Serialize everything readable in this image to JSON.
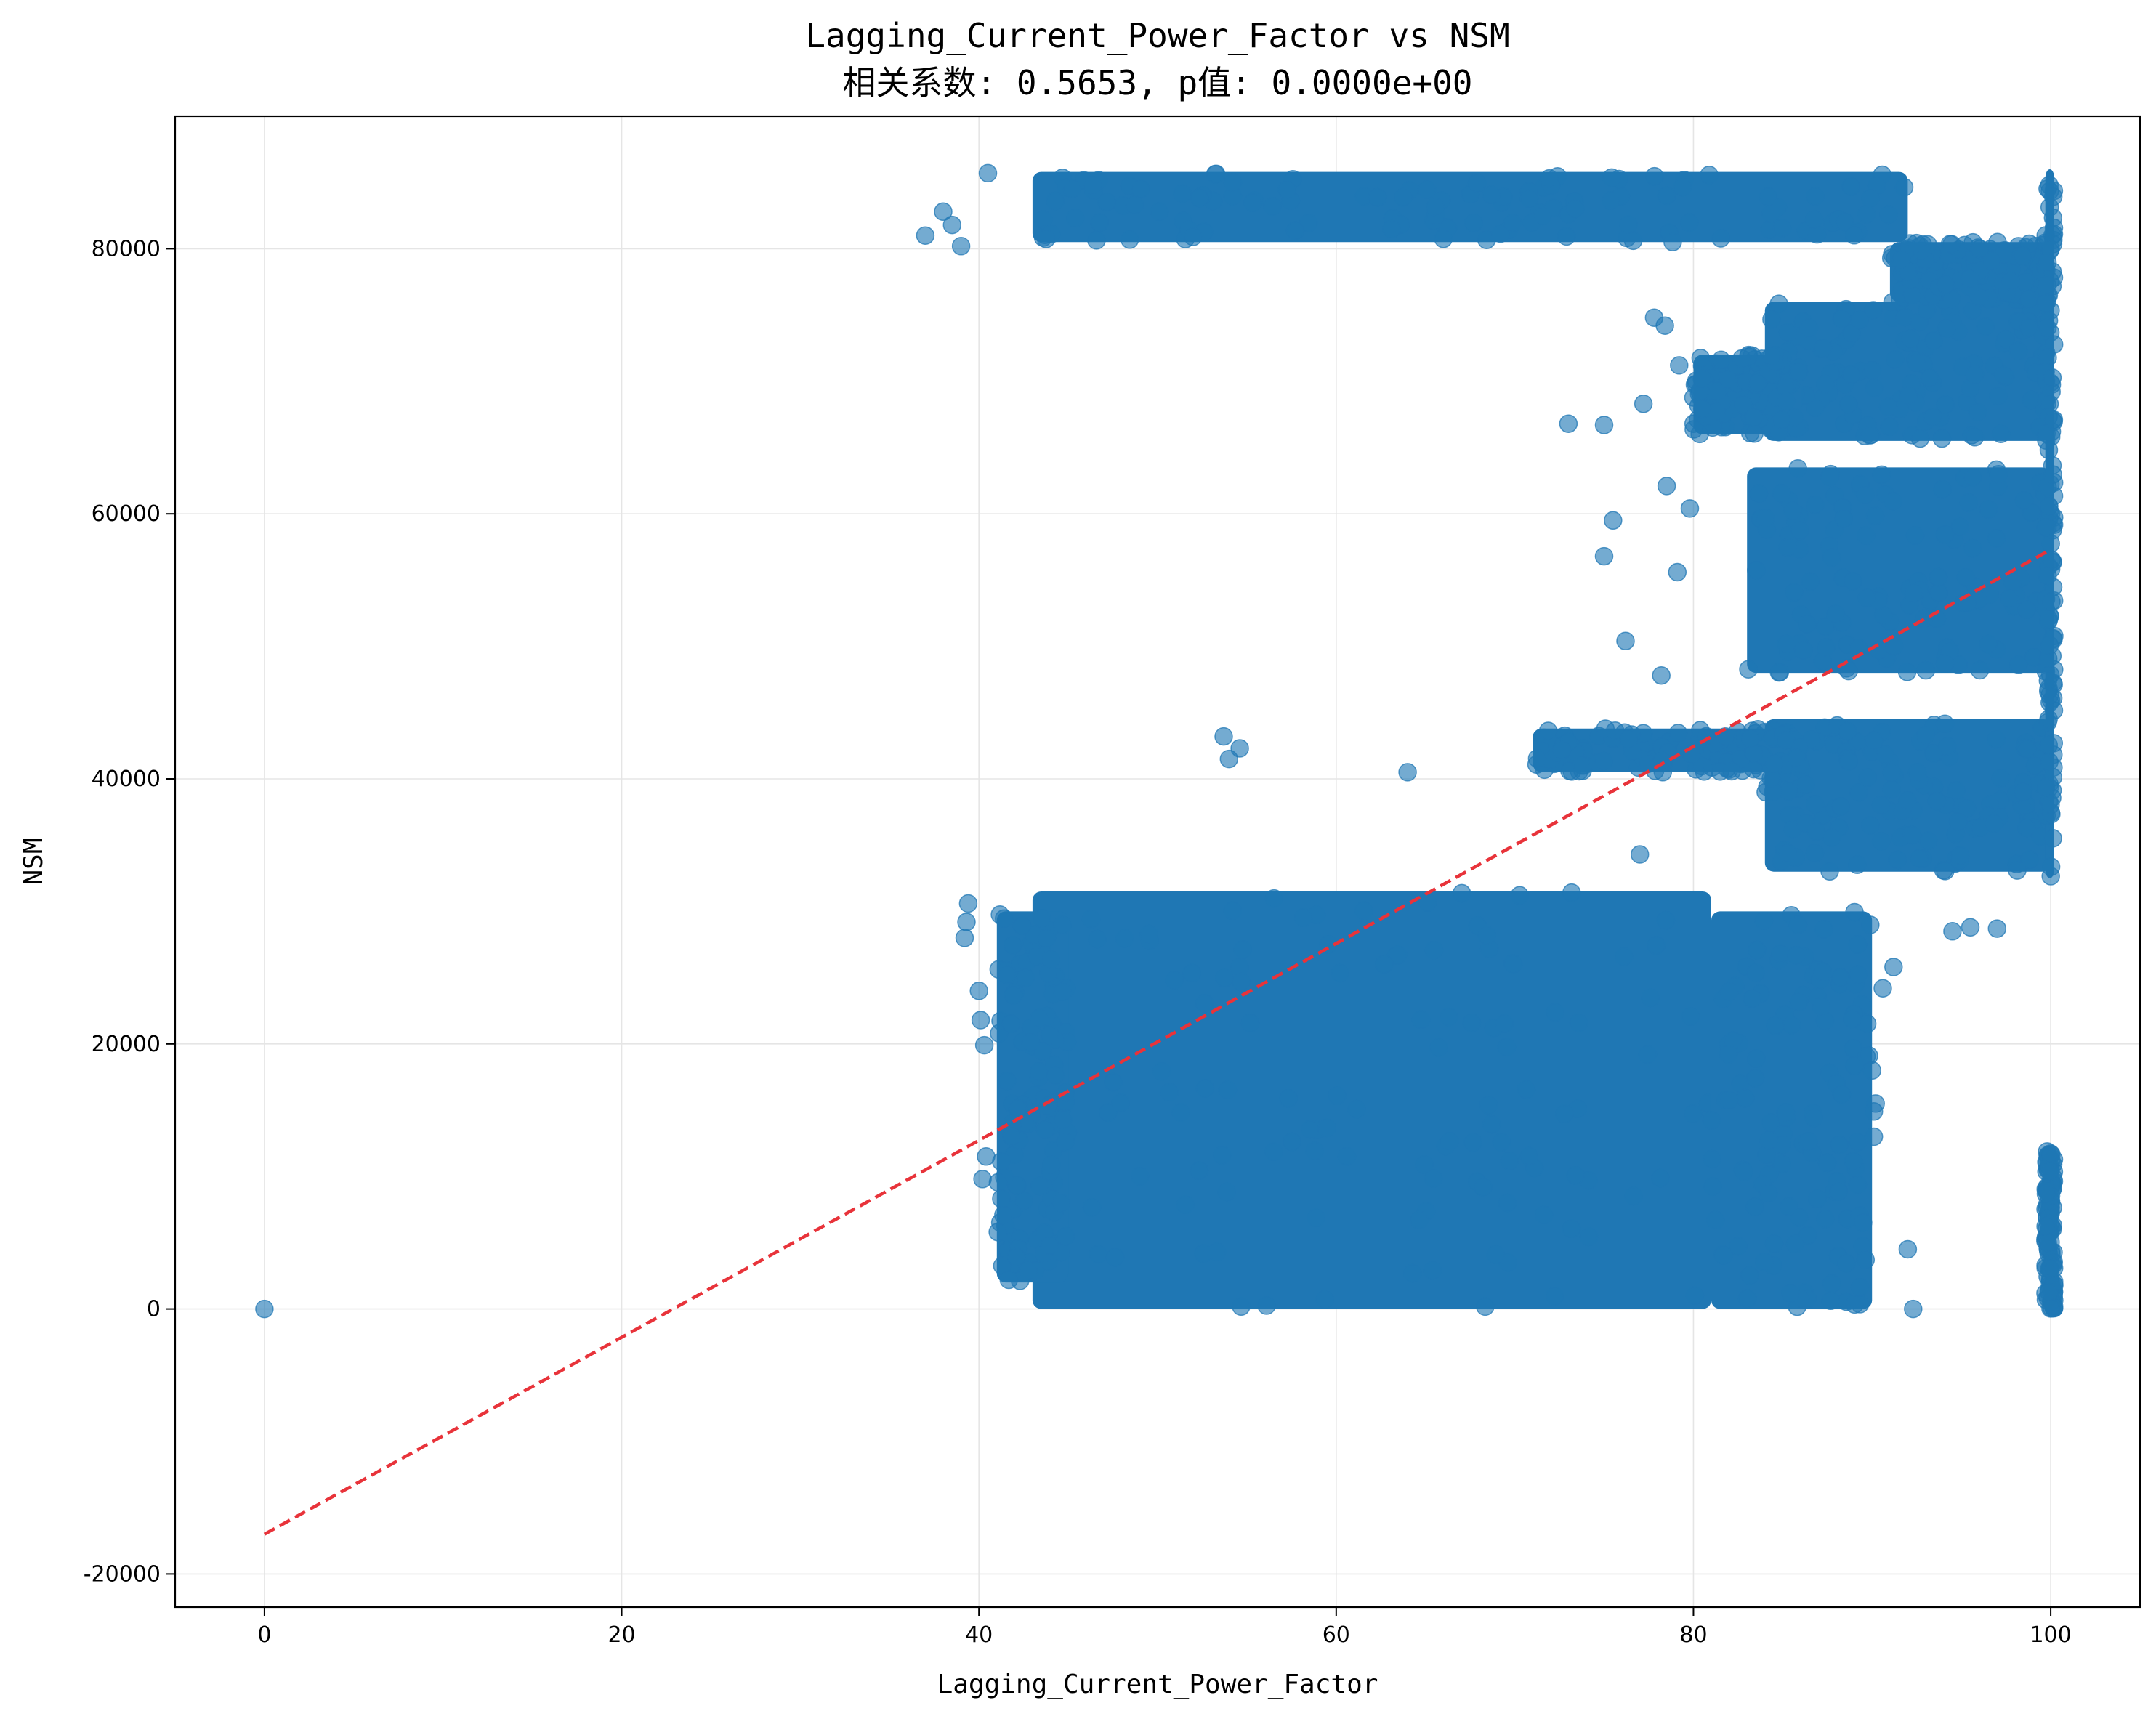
{
  "chart_data": {
    "type": "scatter",
    "title": "Lagging_Current_Power_Factor vs NSM",
    "subtitle": "相关系数: 0.5653, p值: 0.0000e+00",
    "xlabel": "Lagging_Current_Power_Factor",
    "ylabel": "NSM",
    "xlim": [
      -5,
      105
    ],
    "ylim": [
      -22500,
      90000
    ],
    "xticks": [
      0,
      20,
      40,
      60,
      80,
      100
    ],
    "yticks": [
      -20000,
      0,
      20000,
      40000,
      60000,
      80000
    ],
    "grid": true,
    "colors": {
      "points": "#1f77b4",
      "fit_line": "#e8333a",
      "grid": "#e5e5e5",
      "axes": "#000000"
    },
    "series": [
      {
        "type": "scatter",
        "regions": [
          {
            "x": [
              43,
              81
            ],
            "y": [
              0,
              31500
            ]
          },
          {
            "x": [
              41,
              45
            ],
            "y": [
              2000,
              30000
            ]
          },
          {
            "x": [
              81,
              90
            ],
            "y": [
              0,
              30000
            ]
          },
          {
            "x": [
              43,
              92
            ],
            "y": [
              80500,
              85800
            ]
          },
          {
            "x": [
              84,
              100
            ],
            "y": [
              33000,
              44500
            ]
          },
          {
            "x": [
              71,
              86
            ],
            "y": [
              40500,
              43800
            ]
          },
          {
            "x": [
              83,
              100
            ],
            "y": [
              48000,
              63500
            ]
          },
          {
            "x": [
              84,
              100
            ],
            "y": [
              65500,
              76000
            ]
          },
          {
            "x": [
              80,
              86
            ],
            "y": [
              66000,
              72000
            ]
          },
          {
            "x": [
              91,
              100
            ],
            "y": [
              76000,
              80500
            ]
          },
          {
            "x": [
              99.7,
              100.2
            ],
            "y": [
              32500,
              86000
            ]
          },
          {
            "x": [
              99.7,
              100.2
            ],
            "y": [
              0,
              12000
            ]
          }
        ],
        "points": [
          [
            0,
            0
          ],
          [
            37,
            81000
          ],
          [
            38,
            82800
          ],
          [
            39,
            80200
          ],
          [
            38.5,
            81800
          ],
          [
            40.5,
            85700
          ],
          [
            39.2,
            28000
          ],
          [
            39.3,
            29200
          ],
          [
            39.4,
            30600
          ],
          [
            40,
            24000
          ],
          [
            40.1,
            21800
          ],
          [
            40.3,
            19900
          ],
          [
            40.2,
            9800
          ],
          [
            40.4,
            11500
          ],
          [
            53.7,
            43200
          ],
          [
            54,
            41500
          ],
          [
            54.6,
            42300
          ],
          [
            64,
            40500
          ],
          [
            75,
            56800
          ],
          [
            75.5,
            59500
          ],
          [
            76.2,
            50400
          ],
          [
            77,
            34300
          ],
          [
            78.2,
            47800
          ],
          [
            78.5,
            62100
          ],
          [
            79.1,
            55600
          ],
          [
            79.8,
            60400
          ],
          [
            77.2,
            68300
          ],
          [
            77.8,
            74800
          ],
          [
            78.4,
            74200
          ],
          [
            79.2,
            71200
          ],
          [
            75,
            66700
          ],
          [
            73,
            66800
          ],
          [
            88,
            17000
          ],
          [
            88.3,
            16200
          ],
          [
            89.2,
            12600
          ],
          [
            90,
            18000
          ],
          [
            90.1,
            14900
          ],
          [
            90.2,
            15500
          ],
          [
            90.1,
            13000
          ],
          [
            90.6,
            24200
          ],
          [
            91.2,
            25800
          ],
          [
            92,
            4500
          ],
          [
            92.3,
            0
          ],
          [
            97,
            28700
          ],
          [
            95.5,
            28800
          ],
          [
            94.5,
            28500
          ]
        ]
      },
      {
        "type": "line",
        "style": "dashed",
        "x": [
          0,
          100
        ],
        "y": [
          -17000,
          57300
        ]
      }
    ]
  }
}
